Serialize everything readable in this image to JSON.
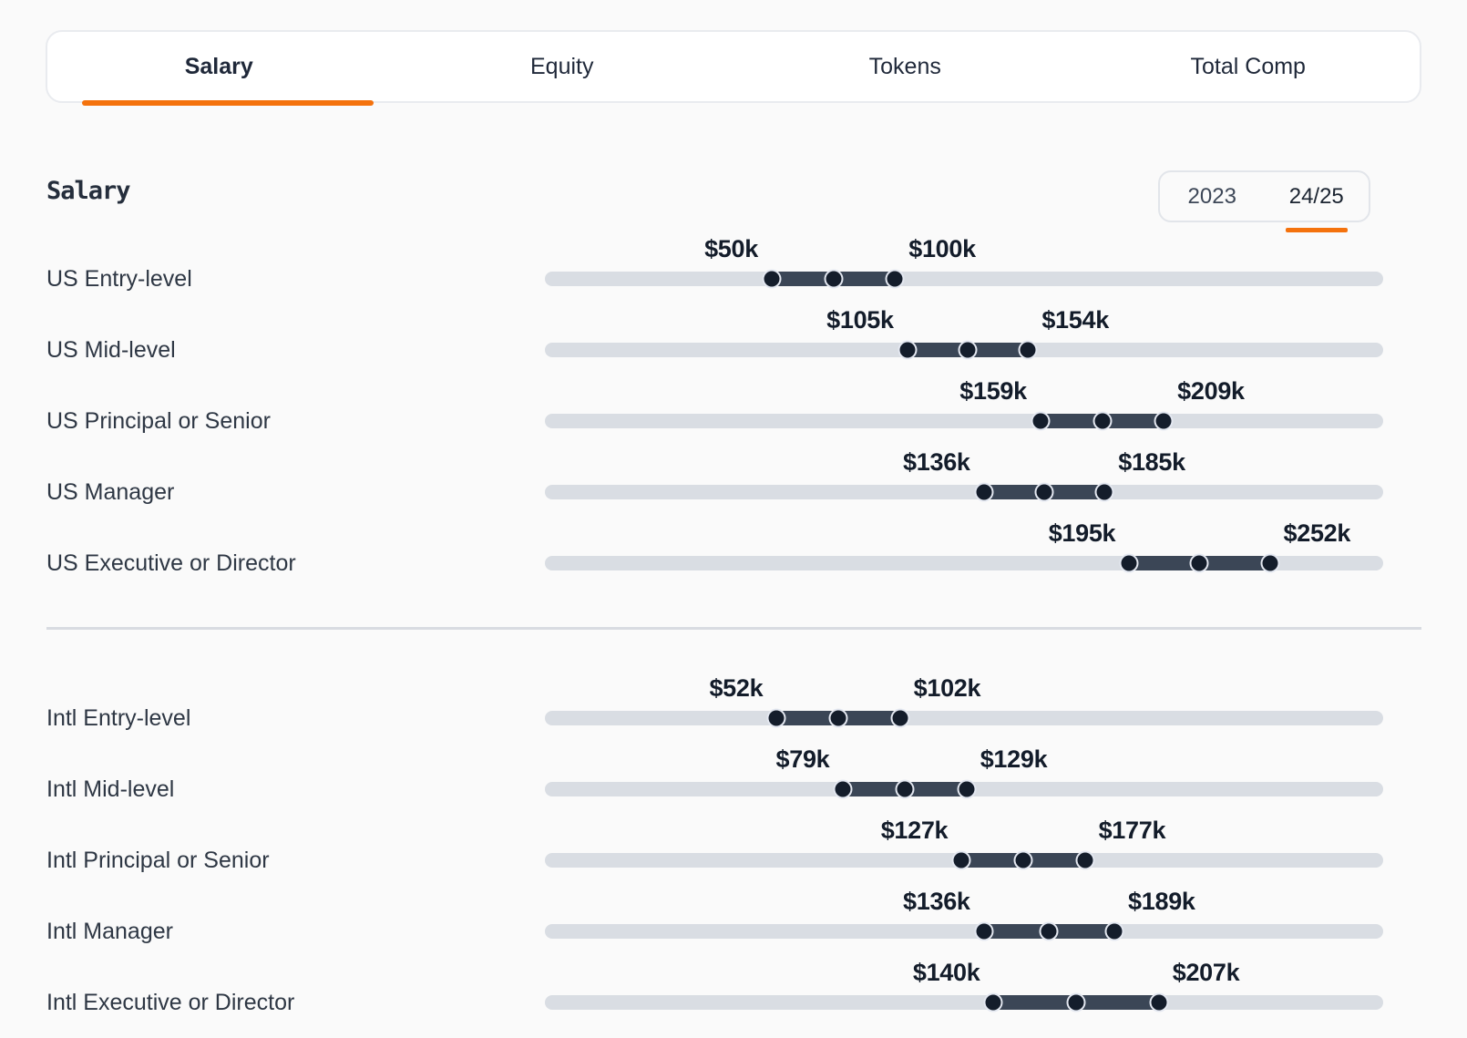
{
  "tab_bar": {
    "tabs": [
      {
        "label": "Salary",
        "active": true
      },
      {
        "label": "Equity",
        "active": false
      },
      {
        "label": "Tokens",
        "active": false
      },
      {
        "label": "Total Comp",
        "active": false
      }
    ]
  },
  "section": {
    "heading": "Salary"
  },
  "year_toggle": {
    "options": [
      {
        "label": "2023",
        "selected": false
      },
      {
        "label": "24/25",
        "selected": true
      }
    ]
  },
  "chart_data": {
    "type": "bar",
    "subtype": "horizontal-range-slider",
    "title": "Salary",
    "unit": "USD thousands per year",
    "axis": {
      "min_k": -42,
      "max_k": 298,
      "gridlines": false
    },
    "marker_note": "each row shows min, midpoint and max handles on a track",
    "groups": [
      {
        "name": "US",
        "rows": [
          {
            "label": "US Entry-level",
            "min_k": 50,
            "max_k": 100,
            "min_label": "$50k",
            "max_label": "$100k"
          },
          {
            "label": "US Mid-level",
            "min_k": 105,
            "max_k": 154,
            "min_label": "$105k",
            "max_label": "$154k"
          },
          {
            "label": "US Principal or Senior",
            "min_k": 159,
            "max_k": 209,
            "min_label": "$159k",
            "max_label": "$209k"
          },
          {
            "label": "US Manager",
            "min_k": 136,
            "max_k": 185,
            "min_label": "$136k",
            "max_label": "$185k"
          },
          {
            "label": "US Executive or Director",
            "min_k": 195,
            "max_k": 252,
            "min_label": "$195k",
            "max_label": "$252k"
          }
        ]
      },
      {
        "name": "Intl",
        "rows": [
          {
            "label": "Intl Entry-level",
            "min_k": 52,
            "max_k": 102,
            "min_label": "$52k",
            "max_label": "$102k"
          },
          {
            "label": "Intl Mid-level",
            "min_k": 79,
            "max_k": 129,
            "min_label": "$79k",
            "max_label": "$129k"
          },
          {
            "label": "Intl Principal or Senior",
            "min_k": 127,
            "max_k": 177,
            "min_label": "$127k",
            "max_label": "$177k"
          },
          {
            "label": "Intl Manager",
            "min_k": 136,
            "max_k": 189,
            "min_label": "$136k",
            "max_label": "$189k"
          },
          {
            "label": "Intl Executive or Director",
            "min_k": 140,
            "max_k": 207,
            "min_label": "$140k",
            "max_label": "$207k"
          }
        ]
      }
    ]
  },
  "colors": {
    "accent_orange": "#f4720d",
    "range_bar": "#3b4656",
    "handle": "#141d2b",
    "handle_ring": "#e4e8f1",
    "track": "#d9dde3",
    "value_text": "#131c2a",
    "label_text": "#2e3744",
    "tab_text": "#1f2839",
    "divider": "#d8dbe1",
    "tab_border": "#e9ebef",
    "background": "#fafafa",
    "surface": "#ffffff"
  }
}
